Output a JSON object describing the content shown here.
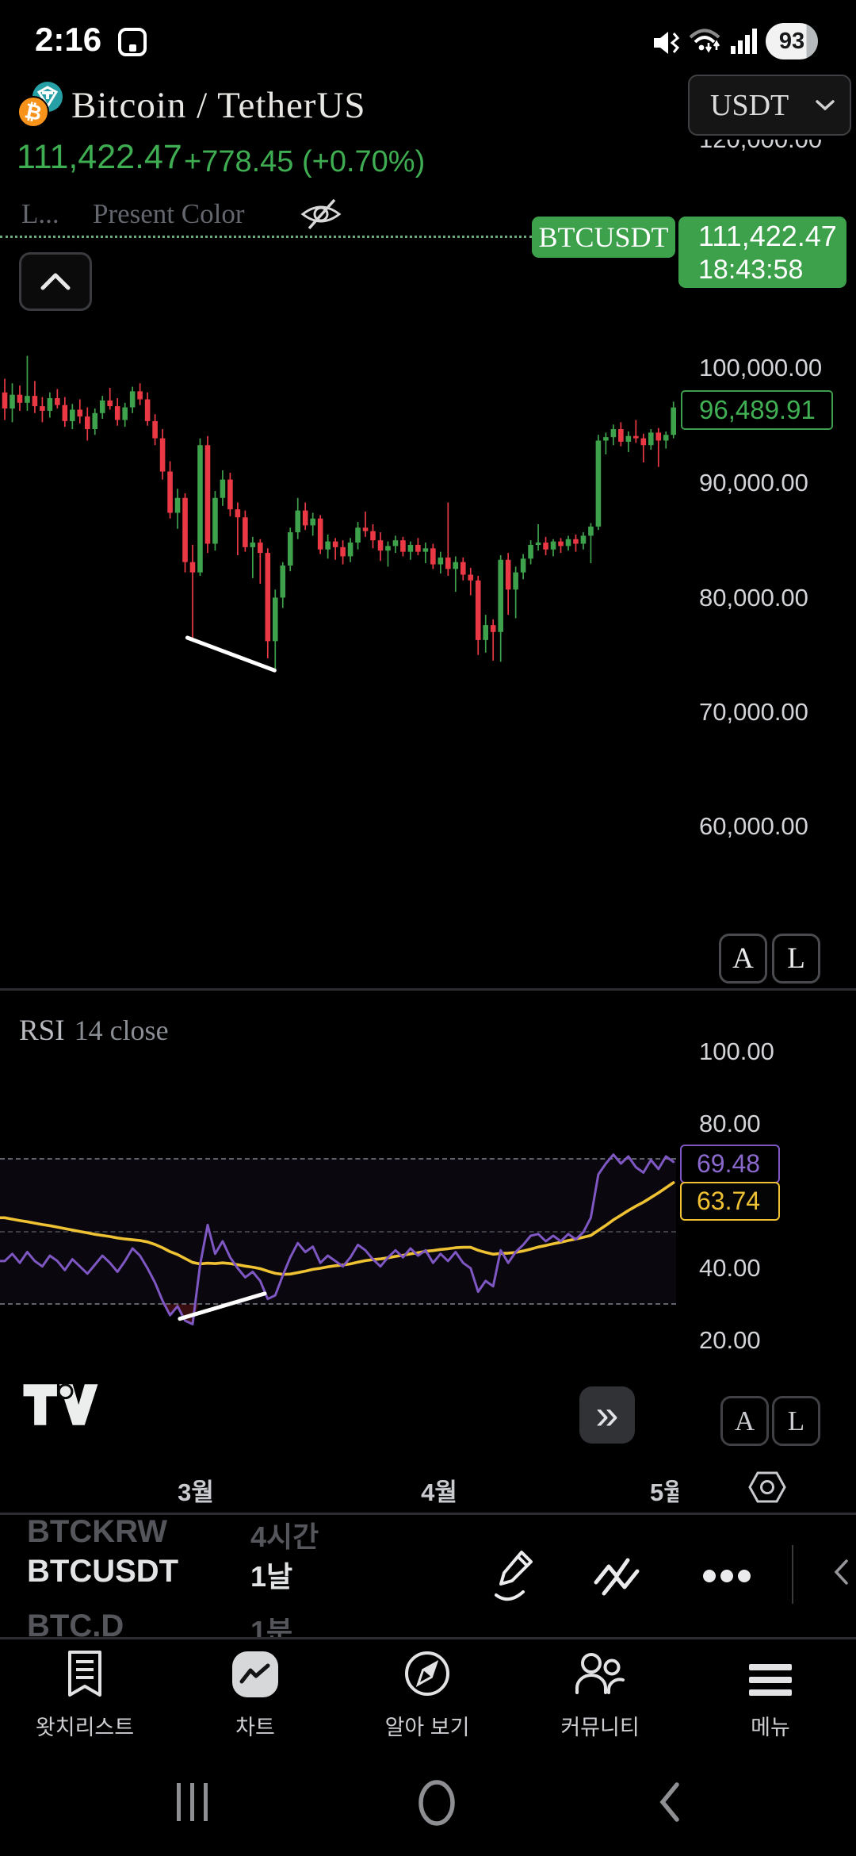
{
  "status_bar": {
    "time": "2:16",
    "battery": "93"
  },
  "header": {
    "title": "Bitcoin / TetherUS",
    "currency_selector": "USDT",
    "price": "111,422.47",
    "change": "+778.45 (+0.70%)"
  },
  "legend": {
    "item1": "L...",
    "item2": "Present Color"
  },
  "symbol_badge": {
    "name": "BTCUSDT",
    "price": "111,422.47",
    "countdown": "18:43:58"
  },
  "price_axis": {
    "clipped_top": "120,000.00",
    "ticks": [
      "100,000.00",
      "90,000.00",
      "80,000.00",
      "70,000.00",
      "60,000.00"
    ],
    "last_close": "96,489.91"
  },
  "rsi_panel": {
    "title": "RSI",
    "params": "14 close",
    "ticks": [
      "100.00",
      "80.00",
      "40.00",
      "20.00"
    ],
    "value_label": "69.48",
    "ma_label": "63.74"
  },
  "buttons": {
    "a_label": "A",
    "l_label": "L",
    "expand": "»"
  },
  "watchlist": {
    "rows": [
      {
        "symbol": "BTCKRW",
        "interval": "4시간"
      },
      {
        "symbol": "BTCUSDT",
        "interval": "1날"
      },
      {
        "symbol": "BTC.D",
        "interval": "1분"
      }
    ]
  },
  "bottom_nav": {
    "items": [
      {
        "label": "왓치리스트",
        "icon": "watchlist-icon"
      },
      {
        "label": "차트",
        "icon": "chart-icon",
        "active": true
      },
      {
        "label": "알아 보기",
        "icon": "compass-icon"
      },
      {
        "label": "커뮤니티",
        "icon": "community-icon"
      },
      {
        "label": "메뉴",
        "icon": "menu-icon"
      }
    ]
  },
  "colors": {
    "up": "#3ea24c",
    "down": "#ea3945",
    "accent_green": "#3da14c",
    "price_green": "#3fae52",
    "rsi_line": "#7e57c2",
    "rsi_ma": "#efc233",
    "trendline": "#ffffff"
  },
  "chart_data": {
    "type": "candlestick",
    "symbol": "BTCUSDT",
    "interval": "1날",
    "current_price": 111422.47,
    "last_close": 96489.91,
    "countdown": "18:43:58",
    "ylim": [
      57000,
      121000
    ],
    "candles": [
      [
        97800,
        99000,
        95400,
        96400
      ],
      [
        96400,
        98600,
        95200,
        97600
      ],
      [
        97600,
        98400,
        96200,
        96900
      ],
      [
        96900,
        101000,
        96200,
        97500
      ],
      [
        97500,
        98800,
        96000,
        96600
      ],
      [
        96600,
        97400,
        95200,
        96200
      ],
      [
        96200,
        97800,
        95600,
        97300
      ],
      [
        97300,
        98100,
        96400,
        96700
      ],
      [
        96700,
        97400,
        94800,
        95300
      ],
      [
        95300,
        96800,
        94600,
        96300
      ],
      [
        96300,
        97200,
        95100,
        95700
      ],
      [
        95700,
        96500,
        93600,
        94600
      ],
      [
        94600,
        96400,
        94100,
        96000
      ],
      [
        96000,
        97500,
        95500,
        97100
      ],
      [
        97100,
        98200,
        96300,
        96600
      ],
      [
        96600,
        97300,
        94900,
        95400
      ],
      [
        95400,
        96900,
        94800,
        96500
      ],
      [
        96500,
        98300,
        96000,
        97900
      ],
      [
        97900,
        98600,
        96700,
        97200
      ],
      [
        97200,
        97800,
        94900,
        95300
      ],
      [
        95300,
        95900,
        93200,
        93800
      ],
      [
        93800,
        94600,
        90200,
        90900
      ],
      [
        90900,
        91800,
        86800,
        87300
      ],
      [
        87300,
        89400,
        85900,
        88600
      ],
      [
        88600,
        89000,
        82100,
        83000
      ],
      [
        83000,
        84500,
        76300,
        82100
      ],
      [
        82100,
        93800,
        81800,
        93200
      ],
      [
        93200,
        94000,
        83800,
        84600
      ],
      [
        84600,
        89200,
        84000,
        88600
      ],
      [
        88600,
        91000,
        87900,
        90200
      ],
      [
        90200,
        90800,
        87000,
        87600
      ],
      [
        87600,
        88200,
        83600,
        86900
      ],
      [
        86900,
        87500,
        83900,
        84300
      ],
      [
        84300,
        85200,
        81600,
        84700
      ],
      [
        84700,
        85000,
        81100,
        83800
      ],
      [
        83800,
        84200,
        74600,
        76100
      ],
      [
        76100,
        80600,
        73500,
        79900
      ],
      [
        79900,
        83000,
        79000,
        82700
      ],
      [
        82700,
        86000,
        82200,
        85600
      ],
      [
        85600,
        88600,
        85000,
        87500
      ],
      [
        87500,
        88200,
        85800,
        86200
      ],
      [
        86200,
        87300,
        85300,
        86800
      ],
      [
        86800,
        87100,
        83700,
        84100
      ],
      [
        84100,
        85400,
        83300,
        84800
      ],
      [
        84800,
        85100,
        83200,
        84300
      ],
      [
        84300,
        84900,
        82800,
        83500
      ],
      [
        83500,
        85100,
        83000,
        84700
      ],
      [
        84700,
        86500,
        84100,
        86000
      ],
      [
        86000,
        87400,
        85200,
        85700
      ],
      [
        85700,
        86300,
        84200,
        84900
      ],
      [
        84900,
        85600,
        83100,
        84000
      ],
      [
        84000,
        84800,
        82600,
        84400
      ],
      [
        84400,
        85300,
        83800,
        84900
      ],
      [
        84900,
        85200,
        83500,
        83900
      ],
      [
        83900,
        84800,
        83200,
        84500
      ],
      [
        84500,
        85100,
        83600,
        83900
      ],
      [
        83900,
        84700,
        82900,
        84200
      ],
      [
        84200,
        84600,
        82400,
        82800
      ],
      [
        82800,
        83900,
        82000,
        83400
      ],
      [
        83400,
        88200,
        81800,
        82400
      ],
      [
        82400,
        83500,
        80400,
        83000
      ],
      [
        83000,
        83400,
        81400,
        81900
      ],
      [
        81900,
        82500,
        80100,
        81400
      ],
      [
        81400,
        81800,
        74900,
        76200
      ],
      [
        76200,
        78400,
        75100,
        77500
      ],
      [
        77500,
        78000,
        74400,
        76900
      ],
      [
        76900,
        83600,
        74300,
        83200
      ],
      [
        83200,
        83800,
        78400,
        80600
      ],
      [
        80600,
        82600,
        78100,
        82100
      ],
      [
        82100,
        83700,
        81500,
        83300
      ],
      [
        83300,
        84900,
        82800,
        84500
      ],
      [
        84500,
        86300,
        84000,
        84700
      ],
      [
        84700,
        85200,
        83600,
        84100
      ],
      [
        84100,
        85000,
        83500,
        84800
      ],
      [
        84800,
        85100,
        83800,
        84400
      ],
      [
        84400,
        85300,
        84000,
        85000
      ],
      [
        85000,
        85400,
        83900,
        84600
      ],
      [
        84600,
        85600,
        84100,
        85300
      ],
      [
        85300,
        86400,
        82900,
        86100
      ],
      [
        86100,
        94100,
        85800,
        93600
      ],
      [
        93600,
        94300,
        92400,
        93900
      ],
      [
        93900,
        95000,
        93200,
        94600
      ],
      [
        94600,
        95200,
        93100,
        93500
      ],
      [
        93500,
        94400,
        92600,
        94000
      ],
      [
        94000,
        95400,
        93400,
        93800
      ],
      [
        93800,
        94200,
        91700,
        93200
      ],
      [
        93200,
        94600,
        92800,
        94300
      ],
      [
        94300,
        94700,
        91300,
        93600
      ],
      [
        93600,
        94400,
        92900,
        94100
      ],
      [
        94100,
        97000,
        93800,
        96490
      ]
    ],
    "trendline": {
      "x1_index": 24.3,
      "price1": 76400,
      "x2_index": 35.9,
      "price2": 73550
    },
    "x_axis_labels": [
      {
        "text": "3월",
        "index": 25.4
      },
      {
        "text": "4월",
        "index": 57.8
      },
      {
        "text": "5월",
        "index": 87.8
      }
    ],
    "rsi": {
      "name": "RSI 14 close",
      "last": 69.48,
      "ma_last": 63.74,
      "bands": [
        70,
        50,
        30
      ],
      "values": [
        42,
        44,
        41.5,
        44.5,
        42,
        40.5,
        43.5,
        42,
        39.5,
        42.5,
        40.5,
        38.5,
        41,
        43.5,
        41.5,
        39,
        42,
        45.5,
        43.5,
        40,
        36,
        31,
        27,
        29.5,
        25.5,
        24.5,
        41,
        52,
        44,
        47.5,
        43,
        40,
        37.5,
        39,
        36.5,
        31.5,
        32.5,
        38,
        43,
        47,
        44.5,
        46,
        41.5,
        43.5,
        42,
        40.5,
        43,
        46.5,
        45,
        42.5,
        40.5,
        43,
        45,
        43,
        45.5,
        43.5,
        45,
        41.5,
        44,
        42,
        44.5,
        41.5,
        40,
        33.5,
        36.5,
        35,
        45,
        41.5,
        44.5,
        46.5,
        49,
        49.5,
        47.5,
        49,
        47.5,
        49.5,
        48,
        50,
        54,
        66,
        69,
        71.5,
        69,
        71,
        68,
        66.5,
        70,
        67.5,
        71,
        69.48
      ],
      "ma": [
        54,
        53.6,
        53.2,
        52.9,
        52.5,
        52.1,
        51.8,
        51.4,
        51,
        50.6,
        50.2,
        49.8,
        49.4,
        49.1,
        48.8,
        48.4,
        48.1,
        47.9,
        47.7,
        47.3,
        46.6,
        45.7,
        44.6,
        43.8,
        42.7,
        41.6,
        41.2,
        41.4,
        41.3,
        41.5,
        41.3,
        41,
        40.6,
        40.3,
        39.9,
        39.2,
        38.6,
        38.3,
        38.4,
        38.8,
        39.2,
        39.7,
        40,
        40.4,
        40.7,
        40.9,
        41.2,
        41.7,
        42.1,
        42.4,
        42.6,
        42.9,
        43.3,
        43.6,
        44,
        44.3,
        44.7,
        44.9,
        45.2,
        45.4,
        45.7,
        45.8,
        45.8,
        45,
        44.4,
        43.9,
        44.1,
        44.2,
        44.4,
        44.8,
        45.3,
        45.9,
        46.3,
        46.8,
        47.2,
        47.7,
        48.1,
        48.6,
        49.1,
        50.5,
        51.9,
        53.4,
        54.7,
        56,
        57.2,
        58.3,
        59.6,
        60.9,
        62.3,
        63.74
      ],
      "trendline": {
        "x1_index": 23.3,
        "level1": 26,
        "x2_index": 34.6,
        "level2": 33
      },
      "oversold_polygon": [
        [
          21,
          30
        ],
        [
          22,
          27
        ],
        [
          23,
          29.5
        ],
        [
          24,
          25.5
        ],
        [
          25,
          24.5
        ],
        [
          25.8,
          30
        ]
      ]
    }
  }
}
